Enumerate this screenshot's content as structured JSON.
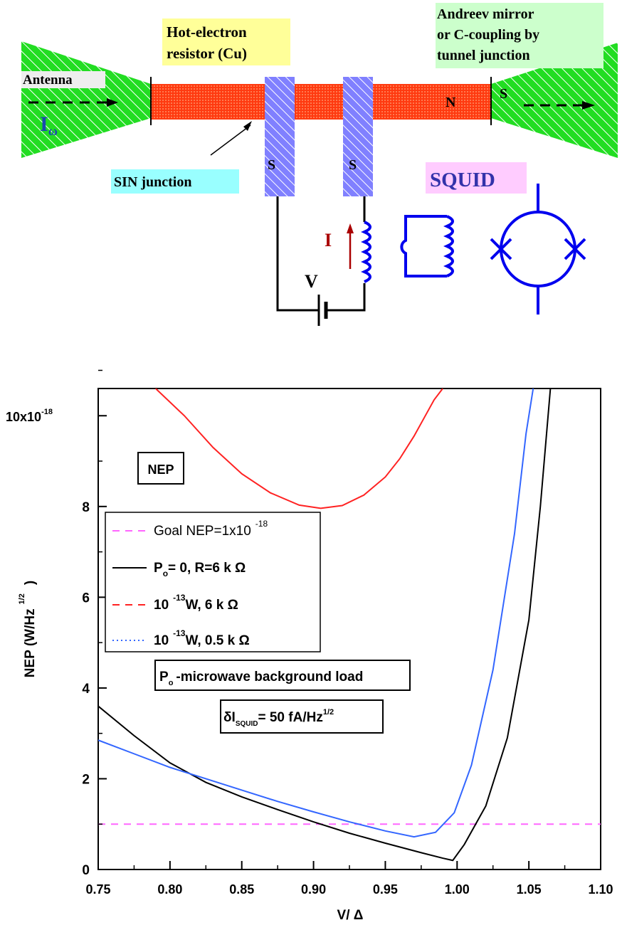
{
  "diagram": {
    "labels": {
      "antenna": "Antenna",
      "i_omega_main": "I",
      "i_omega_sub": "ω",
      "hot_electron_line1": "Hot-electron",
      "hot_electron_line2": "resistor (Cu)",
      "andreev_line1": "Andreev mirror",
      "andreev_line2": "or C-coupling by",
      "andreev_line3": "tunnel junction",
      "n": "N",
      "s_right": "S",
      "s_left_bar": "S",
      "s_right_bar": "S",
      "sin_junction": "SIN junction",
      "squid": "SQUID",
      "current_i": "I",
      "voltage_v": "V"
    },
    "colors": {
      "antenna_green": "#22dd22",
      "resistor_red": "#ff3a10",
      "bar_blue": "#8080ff",
      "circuit_blue": "#0000ee",
      "label_yellow_bg": "#ffff99",
      "label_green_bg": "#ccffcc",
      "label_cyan_bg": "#99ffff",
      "label_pink_bg": "#ffccff",
      "label_gray_bg": "#eeeeee"
    }
  },
  "chart_data": {
    "type": "line",
    "xlabel": "V/ Δ",
    "ylabel": "NEP (W/Hz",
    "ylabel_exp": "1/2",
    "ylabel_close": ")",
    "xlim": [
      0.75,
      1.1
    ],
    "ylim": [
      0,
      10.6
    ],
    "xticks": [
      "0.75",
      "0.80",
      "0.85",
      "0.90",
      "0.95",
      "1.00",
      "1.05",
      "1.10"
    ],
    "yticks": [
      "0",
      "2",
      "4",
      "6",
      "8"
    ],
    "ytick_top": "10x10",
    "ytick_top_exp": "-18",
    "annotations": {
      "nep_box": "NEP",
      "po_note_sub": "o",
      "po_note_rest": "-microwave background load",
      "delta_i_main": "δI",
      "delta_i_sub": "SQUID",
      "delta_i_rest": "= 50 fA/Hz",
      "delta_i_exp": "1/2"
    },
    "legend": [
      {
        "text_a": "Goal NEP=1x10",
        "sup": "-18",
        "text_b": ""
      },
      {
        "text_a": "P",
        "sub": "o",
        "text_b": "= 0,  R=6 k Ω"
      },
      {
        "text_a": "10",
        "sup": "-13",
        "text_b": "W, 6 k Ω"
      },
      {
        "text_a": "10",
        "sup": "-13",
        "text_b": "W, 0.5 k  Ω"
      }
    ],
    "series": [
      {
        "color": "#ff66ff",
        "dash": "dashed",
        "x": [
          0.75,
          1.1
        ],
        "y": [
          1.0,
          1.0
        ]
      },
      {
        "color": "#000000",
        "dash": "solid",
        "x": [
          0.75,
          0.775,
          0.8,
          0.825,
          0.85,
          0.875,
          0.9,
          0.925,
          0.95,
          0.975,
          0.99,
          0.997,
          1.005,
          1.02,
          1.035,
          1.05,
          1.058,
          1.065
        ],
        "y": [
          3.6,
          2.95,
          2.35,
          1.92,
          1.6,
          1.32,
          1.05,
          0.8,
          0.58,
          0.37,
          0.25,
          0.2,
          0.55,
          1.4,
          2.9,
          5.5,
          8.0,
          10.6
        ]
      },
      {
        "color": "#ff2222",
        "dash": "solid",
        "x": [
          0.79,
          0.81,
          0.83,
          0.85,
          0.87,
          0.89,
          0.905,
          0.92,
          0.935,
          0.95,
          0.96,
          0.97,
          0.977,
          0.984,
          0.99
        ],
        "y": [
          10.6,
          10.0,
          9.3,
          8.72,
          8.3,
          8.03,
          7.96,
          8.02,
          8.25,
          8.65,
          9.05,
          9.55,
          9.95,
          10.35,
          10.6
        ]
      },
      {
        "color": "#3366ff",
        "dash": "solid",
        "x": [
          0.75,
          0.775,
          0.8,
          0.825,
          0.85,
          0.875,
          0.9,
          0.925,
          0.95,
          0.97,
          0.985,
          0.998,
          1.01,
          1.025,
          1.04,
          1.048,
          1.053
        ],
        "y": [
          2.85,
          2.55,
          2.25,
          2.0,
          1.75,
          1.5,
          1.27,
          1.05,
          0.85,
          0.72,
          0.82,
          1.25,
          2.3,
          4.4,
          7.4,
          9.6,
          10.6
        ]
      }
    ]
  }
}
